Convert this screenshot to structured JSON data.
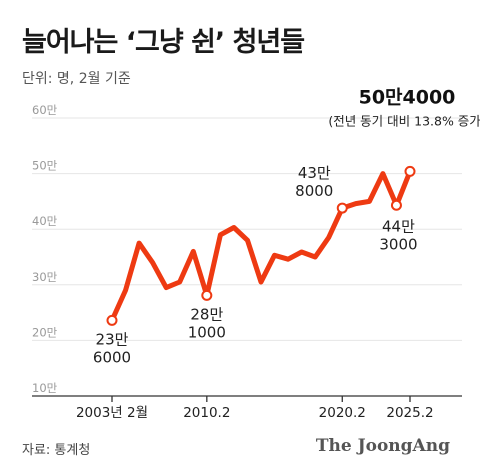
{
  "header": {
    "title": "늘어나는 ‘그냥 쉰’ 청년들",
    "unit": "단위: 명, 2월 기준"
  },
  "footer": {
    "source": "자료: 통계청",
    "logo": "The JoongAng"
  },
  "colors": {
    "line": "#ee3a12",
    "grid": "#e6e6e6",
    "axis": "#333333"
  },
  "chart_data": {
    "type": "line",
    "title": "늘어나는 ‘그냥 쉰’ 청년들",
    "ylim": [
      10,
      60
    ],
    "y_ticks": [
      {
        "value": 60,
        "label": "60만"
      },
      {
        "value": 50,
        "label": "50만"
      },
      {
        "value": 40,
        "label": "40만"
      },
      {
        "value": 30,
        "label": "30만"
      },
      {
        "value": 20,
        "label": "20만"
      },
      {
        "value": 10,
        "label": "10만"
      }
    ],
    "x_ticks": [
      {
        "x": 2003,
        "label": "2003년 2월"
      },
      {
        "x": 2010,
        "label": "2010.2"
      },
      {
        "x": 2020,
        "label": "2020.2"
      },
      {
        "x": 2025,
        "label": "2025.2"
      }
    ],
    "xlim": [
      2003,
      2025
    ],
    "grid": true,
    "series": [
      {
        "values": [
          23.6,
          29.0,
          37.5,
          34.0,
          29.5,
          30.5,
          36.0,
          28.1,
          39.0,
          40.3,
          38.0,
          30.5,
          35.3,
          34.6,
          35.9,
          35.0,
          38.5,
          43.8,
          44.6,
          45.0,
          50.0,
          44.3,
          50.4
        ],
        "x": [
          2003,
          2004,
          2005,
          2006,
          2007,
          2008,
          2009,
          2010,
          2011,
          2012,
          2013,
          2014,
          2015,
          2016,
          2017,
          2018,
          2019,
          2020,
          2021,
          2022,
          2023,
          2024,
          2025
        ]
      }
    ],
    "annotations": [
      {
        "x": 2003,
        "y": 23.6,
        "lines": [
          "23만",
          "6000"
        ]
      },
      {
        "x": 2010,
        "y": 28.1,
        "lines": [
          "28만",
          "1000"
        ]
      },
      {
        "x": 2020,
        "y": 43.8,
        "lines": [
          "43만",
          "8000"
        ]
      },
      {
        "x": 2024,
        "y": 44.3,
        "lines": [
          "44만",
          "3000"
        ]
      },
      {
        "x": 2025,
        "y": 50.4,
        "lines": [
          "50만4000",
          "(전년 동기 대비 13.8% 증가)"
        ]
      }
    ]
  }
}
